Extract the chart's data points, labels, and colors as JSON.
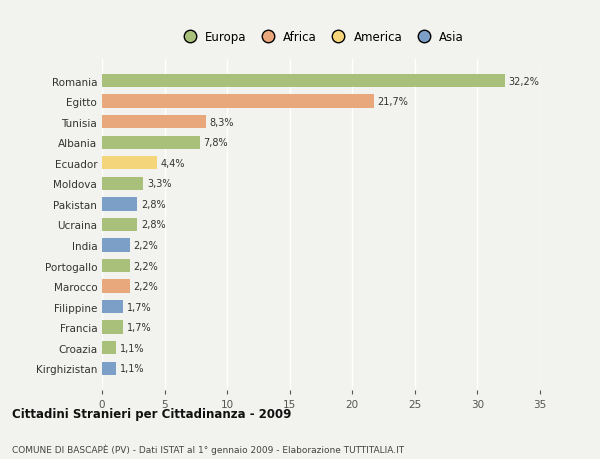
{
  "categories": [
    "Kirghizistan",
    "Croazia",
    "Francia",
    "Filippine",
    "Marocco",
    "Portogallo",
    "India",
    "Ucraina",
    "Pakistan",
    "Moldova",
    "Ecuador",
    "Albania",
    "Tunisia",
    "Egitto",
    "Romania"
  ],
  "values": [
    1.1,
    1.1,
    1.7,
    1.7,
    2.2,
    2.2,
    2.2,
    2.8,
    2.8,
    3.3,
    4.4,
    7.8,
    8.3,
    21.7,
    32.2
  ],
  "labels": [
    "1,1%",
    "1,1%",
    "1,7%",
    "1,7%",
    "2,2%",
    "2,2%",
    "2,2%",
    "2,8%",
    "2,8%",
    "3,3%",
    "4,4%",
    "7,8%",
    "8,3%",
    "21,7%",
    "32,2%"
  ],
  "colors": [
    "#7b9fc7",
    "#a8c07a",
    "#a8c07a",
    "#7b9fc7",
    "#e8a87c",
    "#a8c07a",
    "#7b9fc7",
    "#a8c07a",
    "#7b9fc7",
    "#a8c07a",
    "#f5d57a",
    "#a8c07a",
    "#e8a87c",
    "#e8a87c",
    "#a8c07a"
  ],
  "continent_colors": {
    "Europa": "#a8c07a",
    "Africa": "#e8a87c",
    "America": "#f5d57a",
    "Asia": "#7b9fc7"
  },
  "title1": "Cittadini Stranieri per Cittadinanza - 2009",
  "title2": "COMUNE DI BASCAPÈ (PV) - Dati ISTAT al 1° gennaio 2009 - Elaborazione TUTTITALIA.IT",
  "xlim": [
    0,
    35
  ],
  "xticks": [
    0,
    5,
    10,
    15,
    20,
    25,
    30,
    35
  ],
  "background_color": "#f2f2ee",
  "grid_color": "#ffffff",
  "bar_height": 0.65
}
